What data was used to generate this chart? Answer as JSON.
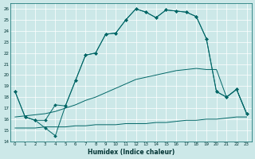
{
  "xlabel": "Humidex (Indice chaleur)",
  "bg_color": "#cce8e8",
  "line_color": "#006666",
  "grid_color": "#ffffff",
  "xlim": [
    -0.5,
    23.5
  ],
  "ylim": [
    14,
    26.5
  ],
  "ytick_min": 14,
  "ytick_max": 26,
  "line1_x": [
    0,
    1,
    2,
    3,
    4,
    5,
    6,
    7,
    8,
    9,
    10,
    11,
    12,
    13,
    14,
    15,
    16,
    17,
    18,
    19,
    20,
    21,
    22,
    23
  ],
  "line1_y": [
    18.5,
    16.2,
    15.9,
    15.2,
    14.5,
    17.2,
    19.5,
    21.8,
    22.0,
    23.7,
    23.8,
    25.0,
    26.0,
    25.7,
    25.2,
    25.9,
    25.8,
    25.7,
    25.3,
    23.3,
    18.5,
    18.0,
    18.7,
    16.5
  ],
  "line2_x": [
    0,
    1,
    2,
    3,
    4,
    5,
    6,
    7,
    8,
    9,
    10,
    11,
    12,
    13,
    14,
    15,
    16,
    17,
    18,
    19,
    20,
    21,
    22,
    23
  ],
  "line2_y": [
    18.5,
    16.2,
    15.9,
    15.9,
    17.3,
    17.2,
    19.5,
    21.8,
    22.0,
    23.7,
    23.8,
    25.0,
    26.0,
    25.7,
    25.2,
    25.9,
    25.8,
    25.7,
    25.3,
    23.3,
    18.5,
    18.0,
    18.7,
    16.5
  ],
  "line3_x": [
    0,
    1,
    2,
    3,
    4,
    5,
    6,
    7,
    8,
    9,
    10,
    11,
    12,
    13,
    14,
    15,
    16,
    17,
    18,
    19,
    20,
    21,
    22,
    23
  ],
  "line3_y": [
    15.2,
    15.2,
    15.2,
    15.3,
    15.3,
    15.3,
    15.4,
    15.4,
    15.5,
    15.5,
    15.5,
    15.6,
    15.6,
    15.6,
    15.7,
    15.7,
    15.8,
    15.9,
    15.9,
    16.0,
    16.0,
    16.1,
    16.2,
    16.2
  ],
  "line4_x": [
    0,
    1,
    2,
    3,
    4,
    5,
    6,
    7,
    8,
    9,
    10,
    11,
    12,
    13,
    14,
    15,
    16,
    17,
    18,
    19,
    20,
    21,
    22,
    23
  ],
  "line4_y": [
    16.2,
    16.3,
    16.4,
    16.5,
    16.7,
    17.0,
    17.3,
    17.7,
    18.0,
    18.4,
    18.8,
    19.2,
    19.6,
    19.8,
    20.0,
    20.2,
    20.4,
    20.5,
    20.6,
    20.5,
    20.5,
    18.0,
    18.7,
    16.5
  ]
}
